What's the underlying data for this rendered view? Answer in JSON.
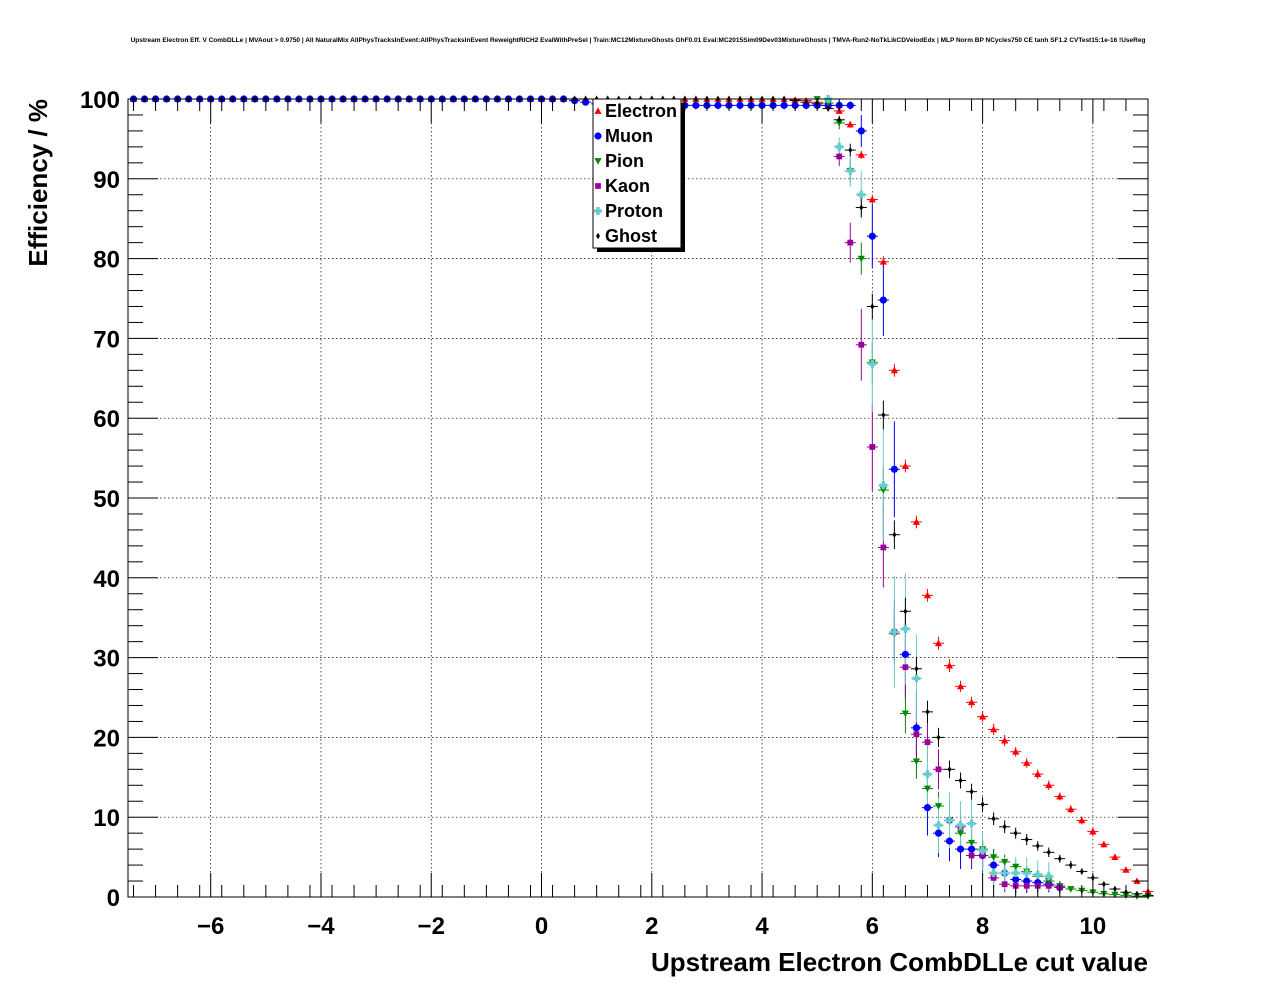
{
  "chart_data": {
    "type": "scatter",
    "title": "Upstream Electron Eff. V CombDLLe | MVAout > 0.9750 | All NaturalMix AllPhysTracksInEvent:AllPhysTracksInEvent ReweightRICH2 EvalWithPreSel | Train:MC12MixtureGhosts GhF0.01 Eval:MC2015Sim09Dev03MixtureGhosts | TMVA-Run2-NoTkLikCDVelodEdx | MLP Norm BP NCycles750 CE tanh SF1.2 CVTest15:1e-16 !UseReg",
    "xlabel": "Upstream Electron CombDLLe cut value",
    "ylabel": "Efficiency / %",
    "xlim": [
      -7.5,
      11.0
    ],
    "ylim": [
      0,
      100
    ],
    "x_ticks": [
      -6,
      -4,
      -2,
      0,
      2,
      4,
      6,
      8,
      10
    ],
    "x_tick_labels": [
      "−6",
      "−4",
      "−2",
      "0",
      "2",
      "4",
      "6",
      "8",
      "10"
    ],
    "y_ticks": [
      0,
      10,
      20,
      30,
      40,
      50,
      60,
      70,
      80,
      90,
      100
    ],
    "y_tick_labels": [
      "0",
      "10",
      "20",
      "30",
      "40",
      "50",
      "60",
      "70",
      "80",
      "90",
      "100"
    ],
    "grid": true,
    "legend_position": "top-center",
    "series": [
      {
        "name": "Electron",
        "color": "#ff0000",
        "marker": "triangle-up",
        "x": [
          -7.4,
          -7.2,
          -7.0,
          -6.8,
          -6.6,
          -6.4,
          -6.2,
          -6.0,
          -5.8,
          -5.6,
          -5.4,
          -5.2,
          -5.0,
          -4.8,
          -4.6,
          -4.4,
          -4.2,
          -4.0,
          -3.8,
          -3.6,
          -3.4,
          -3.2,
          -3.0,
          -2.8,
          -2.6,
          -2.4,
          -2.2,
          -2.0,
          -1.8,
          -1.6,
          -1.4,
          -1.2,
          -1.0,
          -0.8,
          -0.6,
          -0.4,
          -0.2,
          0.0,
          0.2,
          0.4,
          0.6,
          0.8,
          1.0,
          1.2,
          1.4,
          1.6,
          1.8,
          2.0,
          2.2,
          2.4,
          2.6,
          2.8,
          3.0,
          3.2,
          3.4,
          3.6,
          3.8,
          4.0,
          4.2,
          4.4,
          4.6,
          4.8,
          5.0,
          5.2,
          5.4,
          5.6,
          5.8,
          6.0,
          6.2,
          6.4,
          6.6,
          6.8,
          7.0,
          7.2,
          7.4,
          7.6,
          7.8,
          8.0,
          8.2,
          8.4,
          8.6,
          8.8,
          9.0,
          9.2,
          9.4,
          9.6,
          9.8,
          10.0,
          10.2,
          10.4,
          10.6,
          10.8,
          11.0
        ],
        "y": [
          100,
          100,
          100,
          100,
          100,
          100,
          100,
          100,
          100,
          100,
          100,
          100,
          100,
          100,
          100,
          100,
          100,
          100,
          100,
          100,
          100,
          100,
          100,
          100,
          100,
          100,
          100,
          100,
          100,
          100,
          100,
          100,
          100,
          100,
          100,
          100,
          100,
          100,
          100,
          100,
          100,
          100,
          100,
          100,
          100,
          100,
          100,
          100,
          100,
          100,
          100,
          100,
          100,
          100,
          100,
          100,
          100,
          100,
          100,
          100,
          99.9,
          99.8,
          99.6,
          99.2,
          98.5,
          96.8,
          93.0,
          87.4,
          79.6,
          66.0,
          54.0,
          47.0,
          37.8,
          31.8,
          29.0,
          26.4,
          24.4,
          22.6,
          21.0,
          19.6,
          18.2,
          16.8,
          15.4,
          14.0,
          12.6,
          11.0,
          9.6,
          8.2,
          6.6,
          5.0,
          3.4,
          2.0,
          0.7
        ],
        "err": [
          0,
          0,
          0,
          0,
          0,
          0,
          0,
          0,
          0,
          0,
          0,
          0,
          0,
          0,
          0,
          0,
          0,
          0,
          0,
          0,
          0,
          0,
          0,
          0,
          0,
          0,
          0,
          0,
          0,
          0,
          0,
          0,
          0,
          0,
          0,
          0,
          0,
          0,
          0,
          0,
          0,
          0,
          0,
          0,
          0,
          0,
          0,
          0,
          0,
          0,
          0,
          0,
          0,
          0,
          0,
          0,
          0,
          0,
          0,
          0,
          0.1,
          0.1,
          0.2,
          0.2,
          0.3,
          0.4,
          0.5,
          0.6,
          0.7,
          0.8,
          0.8,
          0.8,
          0.8,
          0.8,
          0.8,
          0.7,
          0.7,
          0.7,
          0.7,
          0.7,
          0.6,
          0.6,
          0.6,
          0.6,
          0.5,
          0.5,
          0.5,
          0.5,
          0.4,
          0.4,
          0.3,
          0.3,
          0.2
        ]
      },
      {
        "name": "Muon",
        "color": "#0000ff",
        "marker": "circle",
        "x": [
          -7.4,
          -7.2,
          -7.0,
          -6.8,
          -6.6,
          -6.4,
          -6.2,
          -6.0,
          -5.8,
          -5.6,
          -5.4,
          -5.2,
          -5.0,
          -4.8,
          -4.6,
          -4.4,
          -4.2,
          -4.0,
          -3.8,
          -3.6,
          -3.4,
          -3.2,
          -3.0,
          -2.8,
          -2.6,
          -2.4,
          -2.2,
          -2.0,
          -1.8,
          -1.6,
          -1.4,
          -1.2,
          -1.0,
          -0.8,
          -0.6,
          -0.4,
          -0.2,
          0.0,
          0.2,
          0.4,
          0.6,
          0.8,
          1.0,
          1.2,
          1.4,
          1.6,
          1.8,
          2.0,
          2.2,
          2.4,
          2.6,
          2.8,
          3.0,
          3.2,
          3.4,
          3.6,
          3.8,
          4.0,
          4.2,
          4.4,
          4.6,
          4.8,
          5.0,
          5.2,
          5.4,
          5.6,
          5.8,
          6.0,
          6.2,
          6.4,
          6.6,
          6.8,
          7.0,
          7.2,
          7.4,
          7.6,
          7.8,
          8.0,
          8.2,
          8.4,
          8.6,
          8.8,
          9.0,
          9.2,
          9.4
        ],
        "y": [
          100,
          100,
          100,
          100,
          100,
          100,
          100,
          100,
          100,
          100,
          100,
          100,
          100,
          100,
          100,
          100,
          100,
          100,
          100,
          100,
          100,
          100,
          100,
          100,
          100,
          100,
          100,
          100,
          100,
          100,
          100,
          100,
          100,
          100,
          100,
          100,
          100,
          100,
          100,
          100,
          99.8,
          99.6,
          99.4,
          99.3,
          99.2,
          99.2,
          99.2,
          99.2,
          99.2,
          99.2,
          99.2,
          99.2,
          99.2,
          99.2,
          99.2,
          99.2,
          99.2,
          99.2,
          99.2,
          99.2,
          99.2,
          99.2,
          99.2,
          99.2,
          99.2,
          99.2,
          96.0,
          82.8,
          74.8,
          53.6,
          30.4,
          21.2,
          11.2,
          8.0,
          7.0,
          6.0,
          6.0,
          5.2,
          4.0,
          3.0,
          2.2,
          2.0,
          1.8,
          1.6,
          1.2
        ],
        "err": [
          0,
          0,
          0,
          0,
          0,
          0,
          0,
          0,
          0,
          0,
          0,
          0,
          0,
          0,
          0,
          0,
          0,
          0,
          0,
          0,
          0,
          0,
          0,
          0,
          0,
          0,
          0,
          0,
          0,
          0,
          0,
          0,
          0,
          0,
          0,
          0,
          0,
          0,
          0,
          0,
          0.2,
          0.3,
          0.4,
          0.4,
          0.5,
          0.5,
          0.5,
          0.5,
          0.5,
          0.5,
          0.5,
          0.5,
          0.5,
          0.5,
          0.5,
          0.5,
          0.5,
          0.5,
          0.5,
          0.5,
          0.5,
          0.5,
          0.5,
          0.5,
          0.5,
          0.5,
          2.0,
          4.0,
          4.5,
          6.0,
          5.5,
          4.5,
          3.5,
          3.0,
          2.5,
          2.5,
          2.5,
          2.0,
          2.0,
          1.5,
          1.5,
          1.5,
          1.2,
          1.0,
          0.8
        ]
      },
      {
        "name": "Pion",
        "color": "#008800",
        "marker": "triangle-down",
        "x": [
          5.0,
          5.2,
          5.4,
          5.6,
          5.8,
          6.0,
          6.2,
          6.4,
          6.6,
          6.8,
          7.0,
          7.2,
          7.4,
          7.6,
          7.8,
          8.0,
          8.2,
          8.4,
          8.6,
          8.8,
          9.0,
          9.2,
          9.4,
          9.6,
          9.8,
          10.0,
          10.2,
          10.4,
          10.6,
          10.8,
          11.0
        ],
        "y": [
          100,
          99.5,
          97.0,
          91.0,
          80.0,
          67.0,
          51.0,
          33.0,
          23.0,
          17.0,
          13.6,
          11.4,
          9.6,
          8.0,
          6.8,
          6.0,
          5.0,
          4.4,
          3.8,
          3.2,
          2.6,
          2.0,
          1.4,
          1.0,
          0.8,
          0.6,
          0.4,
          0.3,
          0.2,
          0.1,
          0.1
        ],
        "err": [
          0.2,
          0.4,
          0.8,
          1.5,
          2.0,
          2.5,
          3.0,
          3.0,
          2.5,
          2.2,
          2.0,
          1.8,
          1.6,
          1.4,
          1.2,
          1.1,
          1.0,
          0.9,
          0.8,
          0.7,
          0.6,
          0.5,
          0.4,
          0.3,
          0.3,
          0.2,
          0.2,
          0.1,
          0.1,
          0.1,
          0.1
        ]
      },
      {
        "name": "Kaon",
        "color": "#990099",
        "marker": "square",
        "x": [
          5.4,
          5.6,
          5.8,
          6.0,
          6.2,
          6.4,
          6.6,
          6.8,
          7.0,
          7.2,
          7.4,
          7.6,
          7.8,
          8.0,
          8.2,
          8.4,
          8.6,
          8.8,
          9.0,
          9.2,
          9.4
        ],
        "y": [
          92.8,
          82.0,
          69.2,
          56.4,
          43.8,
          33.2,
          28.8,
          20.4,
          19.4,
          16.0,
          9.6,
          8.8,
          5.2,
          5.2,
          2.4,
          1.6,
          1.4,
          1.4,
          1.4,
          1.4,
          1.2
        ],
        "err": [
          1.2,
          2.5,
          4.5,
          5.5,
          5.0,
          4.0,
          3.5,
          3.0,
          2.5,
          2.5,
          2.0,
          1.8,
          1.5,
          1.5,
          1.2,
          1.0,
          1.0,
          0.8,
          0.8,
          0.8,
          0.7
        ]
      },
      {
        "name": "Proton",
        "color": "#66cccc",
        "marker": "cross",
        "x": [
          5.2,
          5.4,
          5.6,
          5.8,
          6.0,
          6.2,
          6.4,
          6.6,
          6.8,
          7.0,
          7.2,
          7.4,
          7.6,
          7.8,
          8.0,
          8.2,
          8.4,
          8.6,
          8.8,
          9.0,
          9.2
        ],
        "y": [
          100,
          94.0,
          91.0,
          88.0,
          66.8,
          51.6,
          33.2,
          33.6,
          27.4,
          15.4,
          9.0,
          9.6,
          9.0,
          9.2,
          5.8,
          3.0,
          3.0,
          3.0,
          3.0,
          2.8,
          2.6
        ],
        "err": [
          0.2,
          1.2,
          2.0,
          3.0,
          6.0,
          7.0,
          7.0,
          7.0,
          5.5,
          4.0,
          3.5,
          3.5,
          3.0,
          3.0,
          2.5,
          2.0,
          2.0,
          2.0,
          2.0,
          1.8,
          1.8
        ]
      },
      {
        "name": "Ghost",
        "color": "#000000",
        "marker": "star",
        "x": [
          -7.4,
          -7.2,
          -7.0,
          -6.8,
          -6.6,
          -6.4,
          -6.2,
          -6.0,
          -5.8,
          -5.6,
          -5.4,
          -5.2,
          -5.0,
          -4.8,
          -4.6,
          -4.4,
          -4.2,
          -4.0,
          -3.8,
          -3.6,
          -3.4,
          -3.2,
          -3.0,
          -2.8,
          -2.6,
          -2.4,
          -2.2,
          -2.0,
          -1.8,
          -1.6,
          -1.4,
          -1.2,
          -1.0,
          -0.8,
          -0.6,
          -0.4,
          -0.2,
          0.0,
          0.2,
          0.4,
          0.6,
          0.8,
          1.0,
          1.2,
          1.4,
          1.6,
          1.8,
          2.0,
          2.2,
          2.4,
          2.6,
          2.8,
          3.0,
          3.2,
          3.4,
          3.6,
          3.8,
          4.0,
          4.2,
          4.4,
          4.6,
          4.8,
          5.0,
          5.2,
          5.4,
          5.6,
          5.8,
          6.0,
          6.2,
          6.4,
          6.6,
          6.8,
          7.0,
          7.2,
          7.4,
          7.6,
          7.8,
          8.0,
          8.2,
          8.4,
          8.6,
          8.8,
          9.0,
          9.2,
          9.4,
          9.6,
          9.8,
          10.0,
          10.2,
          10.4,
          10.6,
          10.8,
          11.0
        ],
        "y": [
          100,
          100,
          100,
          100,
          100,
          100,
          100,
          100,
          100,
          100,
          100,
          100,
          100,
          100,
          100,
          100,
          100,
          100,
          100,
          100,
          100,
          100,
          100,
          100,
          100,
          100,
          100,
          100,
          100,
          100,
          100,
          100,
          100,
          100,
          100,
          100,
          100,
          100,
          100,
          100,
          100,
          100,
          100,
          100,
          100,
          100,
          100,
          100,
          100,
          100,
          100,
          100,
          100,
          100,
          100,
          100,
          100,
          100,
          100,
          100,
          99.8,
          99.6,
          99.4,
          98.8,
          97.4,
          93.6,
          86.4,
          74.0,
          60.4,
          45.4,
          35.8,
          28.6,
          23.2,
          20.0,
          16.0,
          14.6,
          13.2,
          11.6,
          9.8,
          8.8,
          8.0,
          7.2,
          6.4,
          5.6,
          4.8,
          4.0,
          3.2,
          2.4,
          1.6,
          1.0,
          0.6,
          0.4,
          0.2
        ],
        "err": [
          0,
          0,
          0,
          0,
          0,
          0,
          0,
          0,
          0,
          0,
          0,
          0,
          0,
          0,
          0,
          0,
          0,
          0,
          0,
          0,
          0,
          0,
          0,
          0,
          0,
          0,
          0,
          0,
          0,
          0,
          0,
          0,
          0,
          0,
          0,
          0,
          0,
          0,
          0,
          0,
          0,
          0,
          0,
          0,
          0,
          0,
          0,
          0,
          0,
          0,
          0,
          0,
          0,
          0,
          0,
          0,
          0,
          0,
          0,
          0,
          0.1,
          0.2,
          0.2,
          0.3,
          0.5,
          0.8,
          1.2,
          1.6,
          1.8,
          1.8,
          1.7,
          1.5,
          1.4,
          1.2,
          1.1,
          1.0,
          1.0,
          0.9,
          0.8,
          0.8,
          0.7,
          0.7,
          0.6,
          0.6,
          0.5,
          0.5,
          0.4,
          0.4,
          0.3,
          0.3,
          0.2,
          0.2,
          0.1
        ]
      }
    ]
  }
}
